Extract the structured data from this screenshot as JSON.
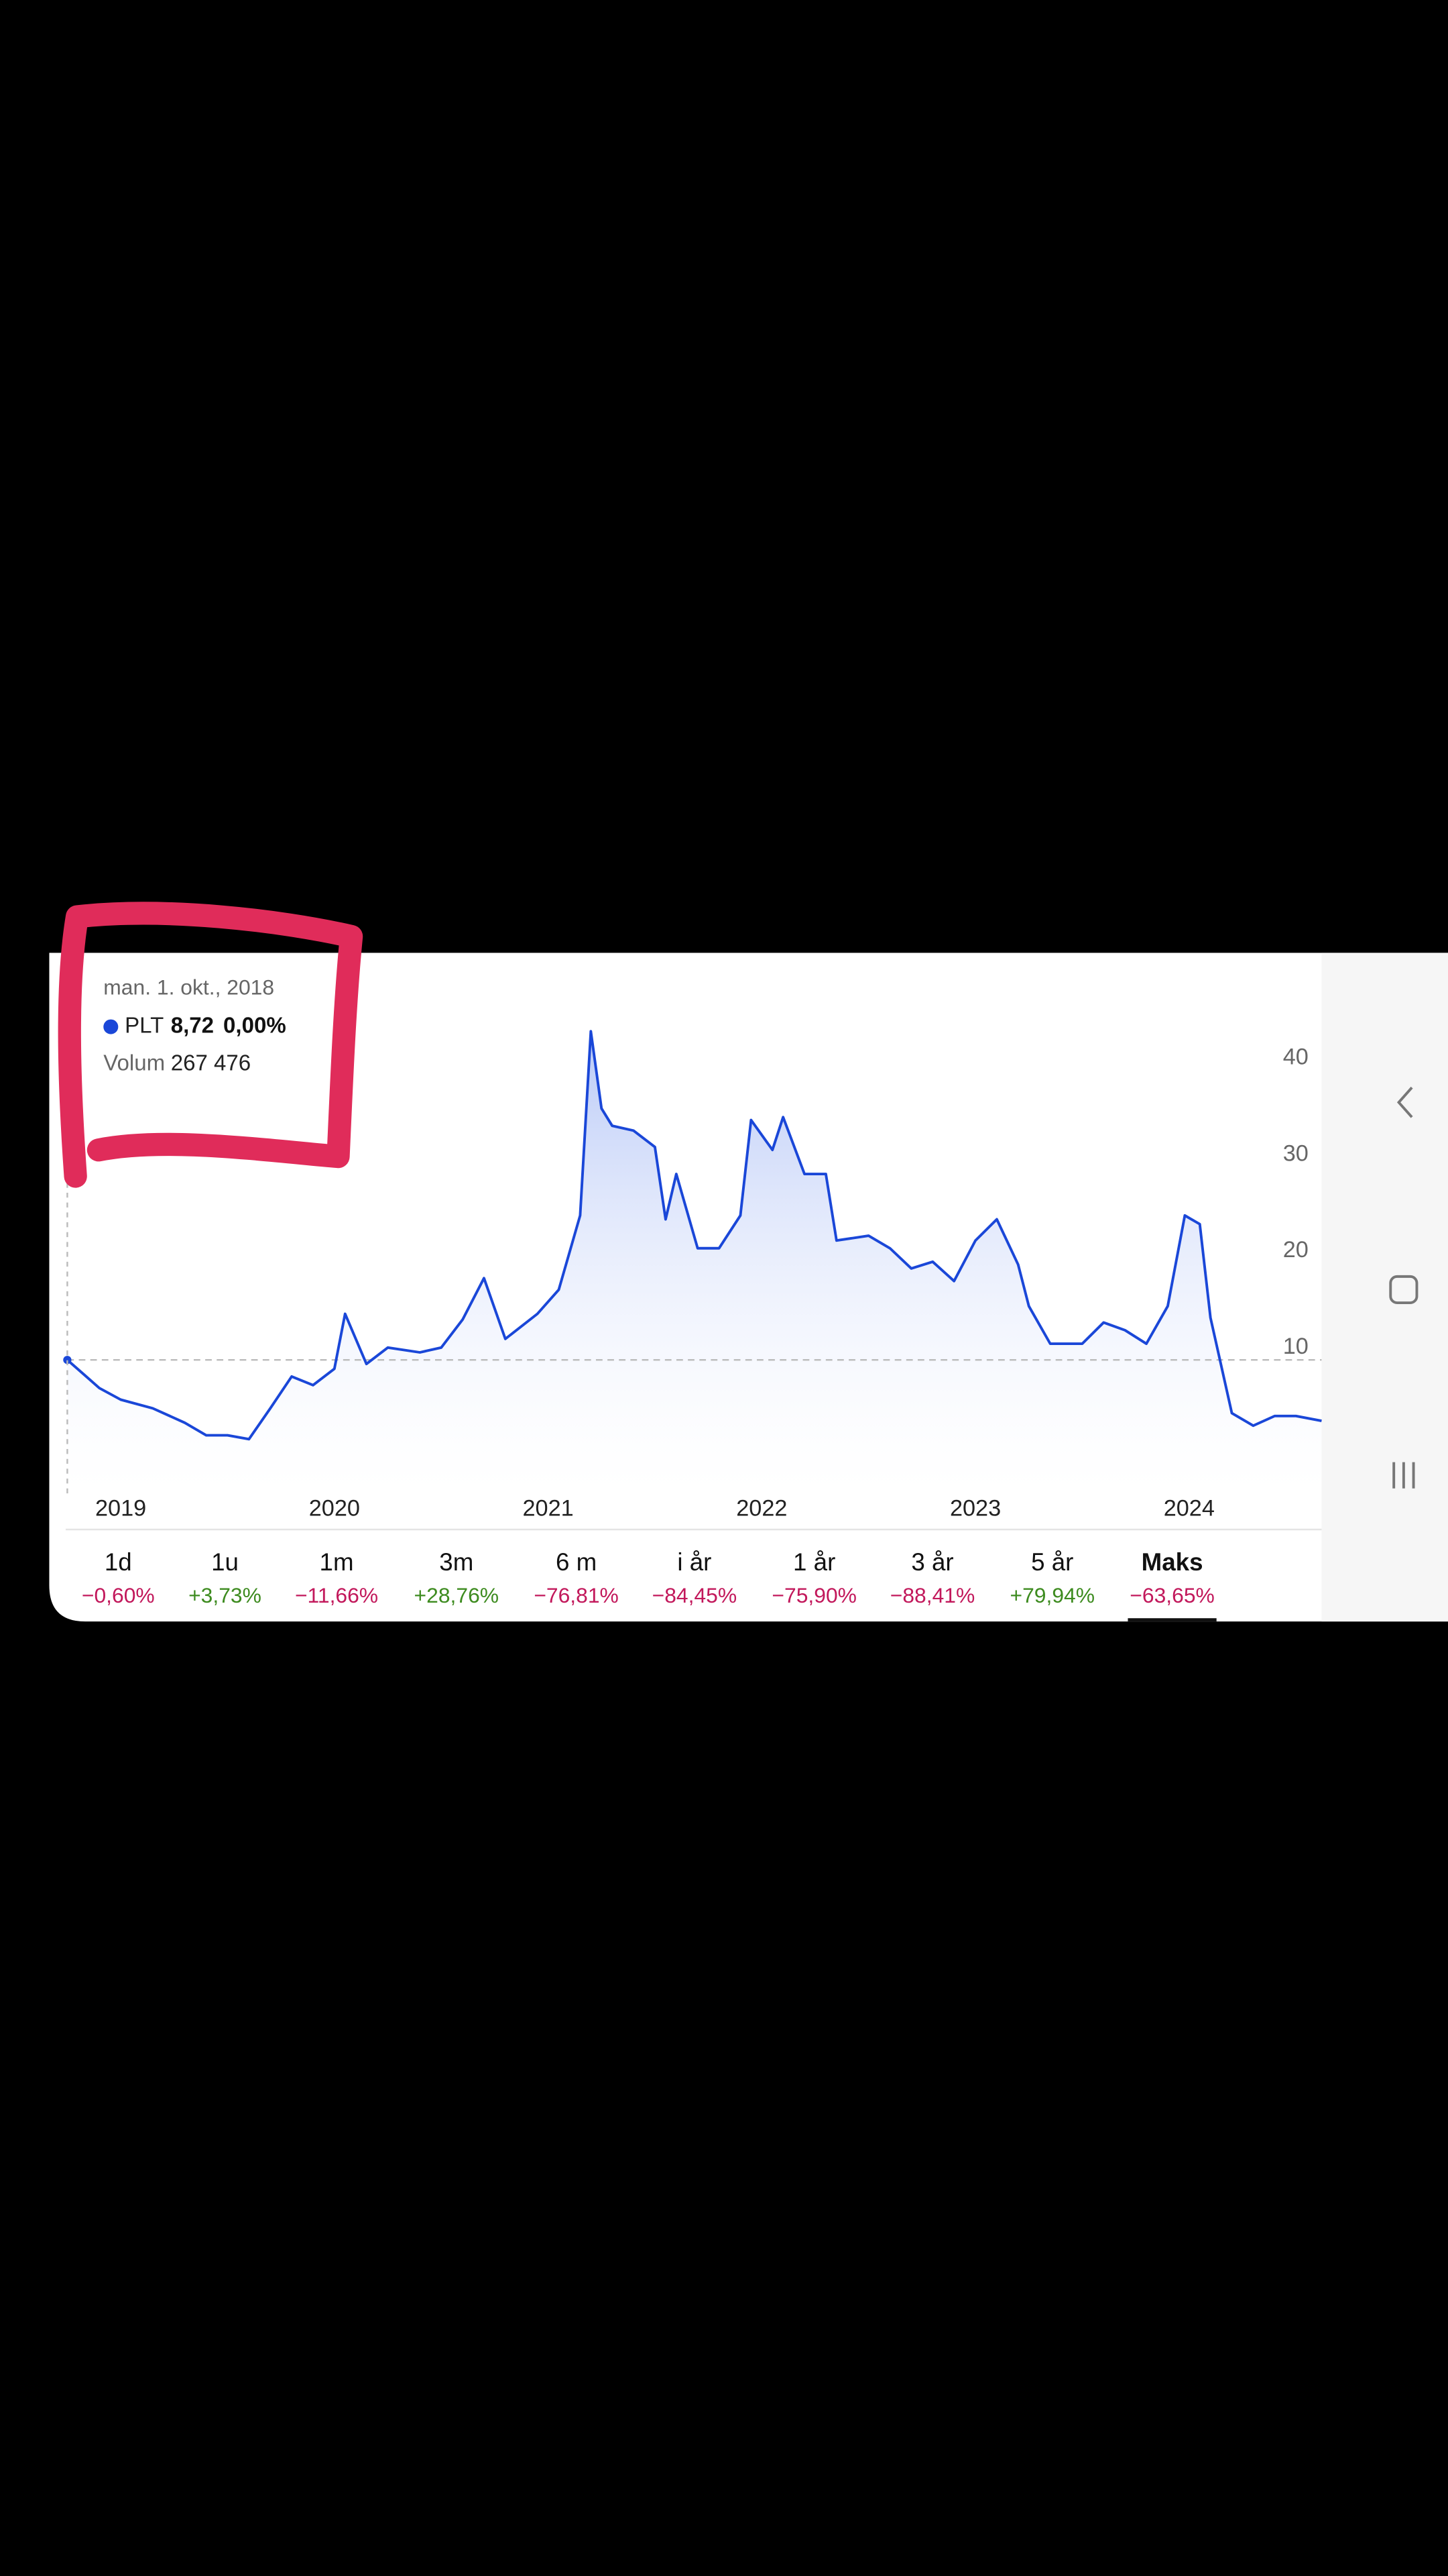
{
  "tooltip": {
    "date": "man. 1. okt., 2018",
    "price": "8,72",
    "change": "0,00%",
    "volume_label": "Volum",
    "volume": "267 476"
  },
  "chart_data": {
    "type": "line",
    "x": [
      2018.75,
      2018.9,
      2019.0,
      2019.15,
      2019.3,
      2019.4,
      2019.5,
      2019.6,
      2019.7,
      2019.8,
      2019.9,
      2020.0,
      2020.05,
      2020.15,
      2020.25,
      2020.4,
      2020.5,
      2020.6,
      2020.7,
      2020.8,
      2020.95,
      2021.05,
      2021.15,
      2021.2,
      2021.25,
      2021.3,
      2021.4,
      2021.5,
      2021.55,
      2021.6,
      2021.7,
      2021.8,
      2021.9,
      2021.95,
      2022.05,
      2022.1,
      2022.2,
      2022.3,
      2022.35,
      2022.5,
      2022.6,
      2022.7,
      2022.8,
      2022.9,
      2023.0,
      2023.1,
      2023.2,
      2023.25,
      2023.35,
      2023.5,
      2023.6,
      2023.7,
      2023.8,
      2023.9,
      2023.98,
      2024.05,
      2024.1,
      2024.2,
      2024.3,
      2024.4,
      2024.5,
      2024.62
    ],
    "series": [
      {
        "name": "PLT",
        "color": "#1a47d8",
        "values": [
          8.72,
          5.8,
          4.6,
          3.7,
          2.2,
          0.9,
          0.9,
          0.5,
          3.7,
          7.0,
          6.1,
          7.8,
          13.5,
          8.3,
          10,
          9.5,
          10,
          12.9,
          17.2,
          10.9,
          13.5,
          16,
          23.7,
          42.8,
          34.8,
          33,
          32.5,
          30.8,
          23.3,
          28,
          20.3,
          20.3,
          23.7,
          33.6,
          30.5,
          33.9,
          28,
          28,
          21.1,
          21.6,
          20.3,
          18.2,
          18.9,
          16.9,
          21.1,
          23.3,
          18.6,
          14.3,
          10.4,
          10.4,
          12.6,
          11.8,
          10.4,
          14.3,
          23.7,
          22.8,
          13.1,
          3.2,
          1.9,
          2.9,
          2.9,
          2.4
        ]
      }
    ],
    "xlim": [
      2018.75,
      2024.62
    ],
    "xticks": [
      2019,
      2020,
      2021,
      2022,
      2023,
      2024
    ],
    "ylim": [
      -5,
      47
    ],
    "yticks": [
      10,
      20,
      30,
      40
    ],
    "grid": false
  },
  "ranges": [
    {
      "label": "1d",
      "change": "−0,60%",
      "color": "#c2185b"
    },
    {
      "label": "1u",
      "change": "+3,73%",
      "color": "#3d8b1f"
    },
    {
      "label": "1m",
      "change": "−11,66%",
      "color": "#c2185b"
    },
    {
      "label": "3m",
      "change": "+28,76%",
      "color": "#3d8b1f"
    },
    {
      "label": "6 m",
      "change": "−76,81%",
      "color": "#c2185b"
    },
    {
      "label": "i år",
      "change": "−84,45%",
      "color": "#c2185b"
    },
    {
      "label": "1 år",
      "change": "−75,90%",
      "color": "#c2185b"
    },
    {
      "label": "3 år",
      "change": "−88,41%",
      "color": "#c2185b"
    },
    {
      "label": "5 år",
      "change": "+79,94%",
      "color": "#3d8b1f"
    },
    {
      "label": "Maks",
      "change": "−63,65%",
      "color": "#c2185b"
    }
  ],
  "selected_range": 9
}
